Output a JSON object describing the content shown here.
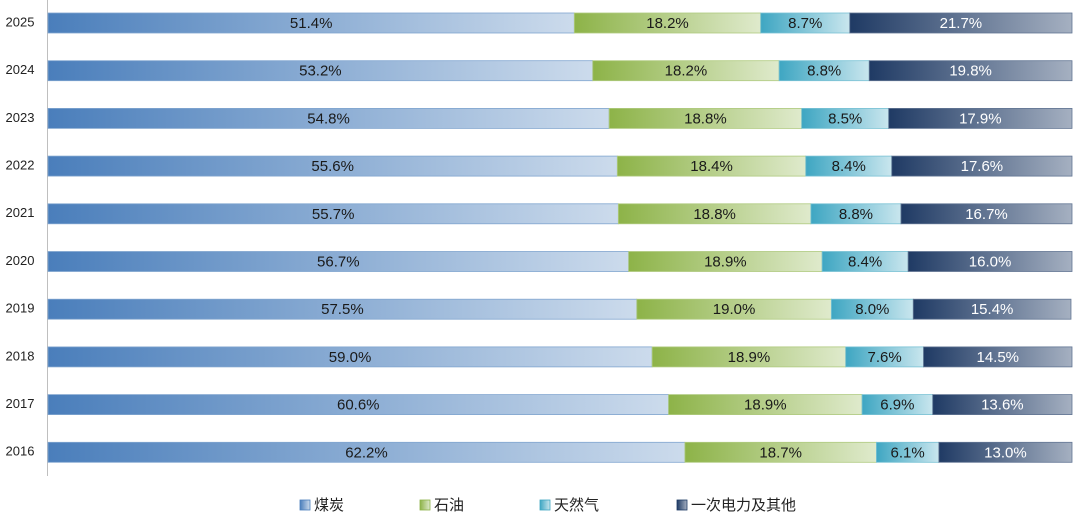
{
  "chart_data": {
    "type": "stacked-bar-horizontal",
    "categories": [
      "2025",
      "2024",
      "2023",
      "2022",
      "2021",
      "2020",
      "2019",
      "2018",
      "2017",
      "2016"
    ],
    "xlim": [
      0,
      100
    ],
    "legend": "bottom",
    "series": [
      {
        "name": "煤炭",
        "color": "#4a7ebb",
        "label_color": "#1a1a1a",
        "values": [
          51.4,
          53.2,
          54.8,
          55.6,
          55.7,
          56.7,
          57.5,
          59.0,
          60.6,
          62.2
        ],
        "value_labels": [
          "51.4%",
          "53.2%",
          "54.8%",
          "55.6%",
          "55.7%",
          "56.7%",
          "57.5%",
          "59.0%",
          "60.6%",
          "62.2%"
        ]
      },
      {
        "name": "石油",
        "color": "#8db348",
        "label_color": "#1a1a1a",
        "values": [
          18.2,
          18.2,
          18.8,
          18.4,
          18.8,
          18.9,
          19.0,
          18.9,
          18.9,
          18.7
        ],
        "value_labels": [
          "18.2%",
          "18.2%",
          "18.8%",
          "18.4%",
          "18.8%",
          "18.9%",
          "19.0%",
          "18.9%",
          "18.9%",
          "18.7%"
        ]
      },
      {
        "name": "天然气",
        "color": "#3ea6c2",
        "label_color": "#1a1a1a",
        "values": [
          8.7,
          8.8,
          8.5,
          8.4,
          8.8,
          8.4,
          8.0,
          7.6,
          6.9,
          6.1
        ],
        "value_labels": [
          "8.7%",
          "8.8%",
          "8.5%",
          "8.4%",
          "8.8%",
          "8.4%",
          "8.0%",
          "7.6%",
          "6.9%",
          "6.1%"
        ]
      },
      {
        "name": "一次电力及其他",
        "color": "#1f3a64",
        "label_color": "#ffffff",
        "values": [
          21.7,
          19.8,
          17.9,
          17.6,
          16.7,
          16.0,
          15.4,
          14.5,
          13.6,
          13.0
        ],
        "value_labels": [
          "21.7%",
          "19.8%",
          "17.9%",
          "17.6%",
          "16.7%",
          "16.0%",
          "15.4%",
          "14.5%",
          "13.6%",
          "13.0%"
        ]
      }
    ]
  }
}
